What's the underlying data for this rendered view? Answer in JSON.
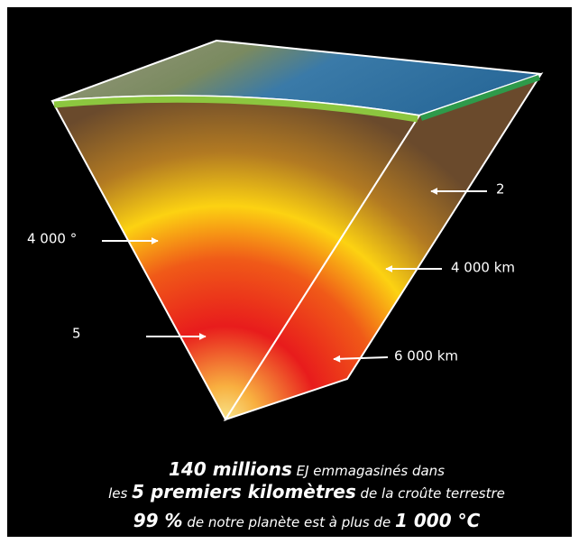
{
  "labels": [
    "4 000 °",
    "5",
    "2",
    "4 000 km",
    "6 000 km"
  ],
  "caption": {
    "line1": [
      "140 millions",
      " EJ emmagasinés dans"
    ],
    "line2": [
      "les ",
      "5 premiers kilomètres",
      " de la croûte terrestre"
    ],
    "line3": [
      "99 %",
      " de notre planète est à plus de ",
      "1 000 °C"
    ]
  }
}
